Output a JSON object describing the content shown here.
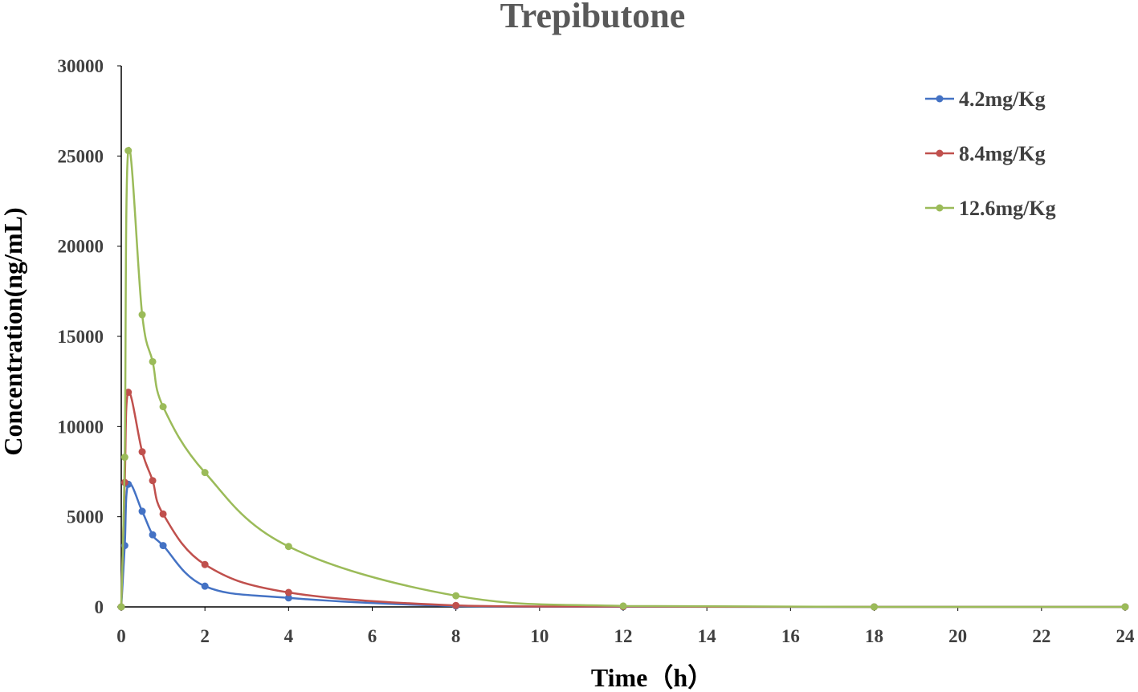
{
  "chart_data": {
    "type": "line",
    "title": "Trepibutone",
    "xlabel": "Time（h）",
    "ylabel": "Concentration(ng/mL)",
    "xlim": [
      0,
      24
    ],
    "ylim": [
      0,
      30000
    ],
    "xticks": [
      "0",
      "2",
      "4",
      "6",
      "8",
      "10",
      "12",
      "14",
      "16",
      "18",
      "20",
      "22",
      "24"
    ],
    "yticks": [
      "0",
      "5000",
      "10000",
      "15000",
      "20000",
      "25000",
      "30000"
    ],
    "grid": false,
    "legend_position": "top-right",
    "series": [
      {
        "name": "4.2mg/Kg",
        "color": "#4472C4",
        "x": [
          0,
          0.083,
          0.167,
          0.5,
          0.75,
          1,
          2,
          4,
          8,
          12,
          18,
          24
        ],
        "y": [
          0,
          3400,
          6800,
          5300,
          4000,
          3400,
          1150,
          500,
          50,
          10,
          0,
          0
        ]
      },
      {
        "name": "8.4mg/Kg",
        "color": "#C0504D",
        "x": [
          0,
          0.083,
          0.167,
          0.5,
          0.75,
          1,
          2,
          4,
          8,
          12,
          18,
          24
        ],
        "y": [
          0,
          6900,
          11900,
          8600,
          7000,
          5150,
          2350,
          800,
          80,
          20,
          0,
          0
        ]
      },
      {
        "name": "12.6mg/Kg",
        "color": "#9BBB59",
        "x": [
          0,
          0.083,
          0.167,
          0.5,
          0.75,
          1,
          2,
          4,
          8,
          12,
          18,
          24
        ],
        "y": [
          0,
          8300,
          25300,
          16200,
          13600,
          11100,
          7450,
          3350,
          620,
          50,
          0,
          0
        ]
      }
    ]
  }
}
